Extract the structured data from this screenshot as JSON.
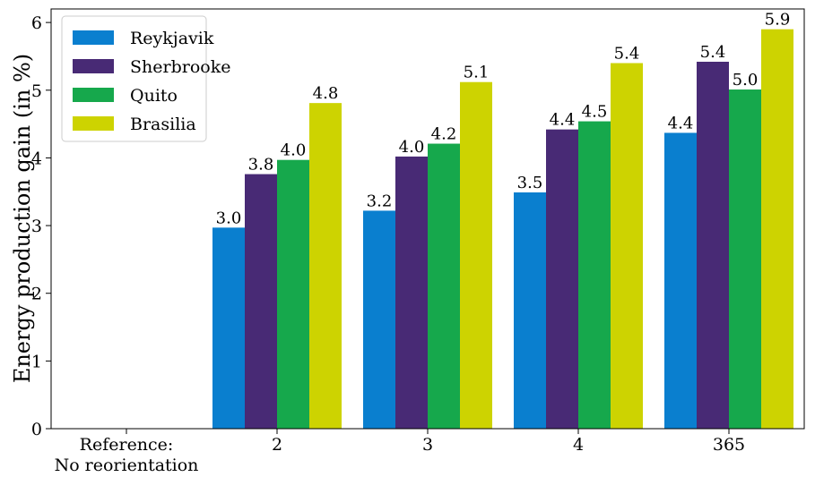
{
  "chart_data": {
    "type": "bar",
    "ylabel": "Energy production gain (in %)",
    "xlabel": "",
    "ylim": [
      0,
      6.2
    ],
    "yticks": [
      0,
      1,
      2,
      3,
      4,
      5,
      6
    ],
    "categories": [
      [
        "Reference:",
        "No reorientation"
      ],
      [
        "2"
      ],
      [
        "3"
      ],
      [
        "4"
      ],
      [
        "365"
      ]
    ],
    "series": [
      {
        "name": "Reykjavik",
        "color": "#0a7fcf",
        "values": [
          null,
          2.97,
          3.22,
          3.49,
          4.37
        ],
        "labels": [
          "",
          "3.0",
          "3.2",
          "3.5",
          "4.4"
        ]
      },
      {
        "name": "Sherbrooke",
        "color": "#482a75",
        "values": [
          null,
          3.76,
          4.02,
          4.42,
          5.42
        ],
        "labels": [
          "",
          "3.8",
          "4.0",
          "4.4",
          "5.4"
        ]
      },
      {
        "name": "Quito",
        "color": "#16a84c",
        "values": [
          null,
          3.97,
          4.21,
          4.54,
          5.01
        ],
        "labels": [
          "",
          "4.0",
          "4.2",
          "4.5",
          "5.0"
        ]
      },
      {
        "name": "Brasilia",
        "color": "#cdd301",
        "values": [
          null,
          4.81,
          5.12,
          5.4,
          5.9
        ],
        "labels": [
          "",
          "4.8",
          "5.1",
          "5.4",
          "5.9"
        ]
      }
    ],
    "legend": "top-left",
    "grid": false
  }
}
